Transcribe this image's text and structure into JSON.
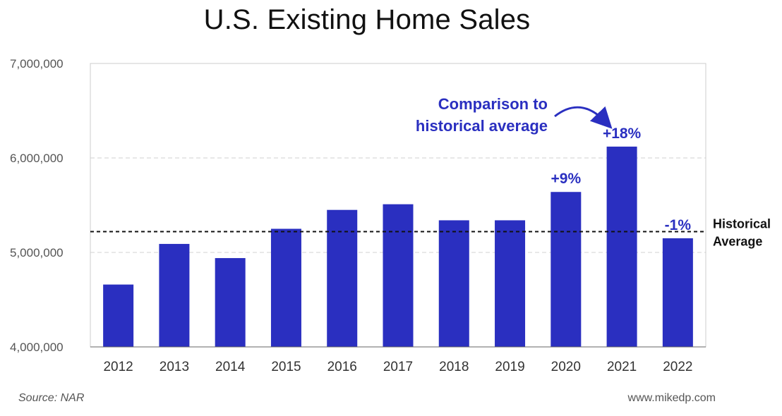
{
  "chart_data": {
    "type": "bar",
    "title": "U.S. Existing Home Sales",
    "categories": [
      "2012",
      "2013",
      "2014",
      "2015",
      "2016",
      "2017",
      "2018",
      "2019",
      "2020",
      "2021",
      "2022"
    ],
    "values": [
      4660000,
      5090000,
      4940000,
      5250000,
      5450000,
      5510000,
      5340000,
      5340000,
      5640000,
      6120000,
      5150000
    ],
    "ylim": [
      4000000,
      7000000
    ],
    "yticks": [
      4000000,
      5000000,
      6000000,
      7000000
    ],
    "ytick_labels": [
      "4,000,000",
      "5,000,000",
      "6,000,000",
      "7,000,000"
    ],
    "xlabel": "",
    "ylabel": "",
    "grid": true,
    "reference_line": {
      "value": 5220000,
      "label_line1": "Historical",
      "label_line2": "Average"
    },
    "bar_labels": [
      {
        "category": "2020",
        "text": "+9%"
      },
      {
        "category": "2021",
        "text": "+18%"
      },
      {
        "category": "2022",
        "text": "-1%"
      }
    ],
    "annotation": {
      "line1": "Comparison to",
      "line2": "historical average",
      "points_to": "2021"
    },
    "colors": {
      "bar": "#2a2fc0",
      "label": "#2a2fc0",
      "reference": "#111111",
      "grid": "#d0d0d0",
      "axis": "#666666"
    }
  },
  "footer": {
    "source": "Source: NAR",
    "site": "www.mikedp.com"
  }
}
